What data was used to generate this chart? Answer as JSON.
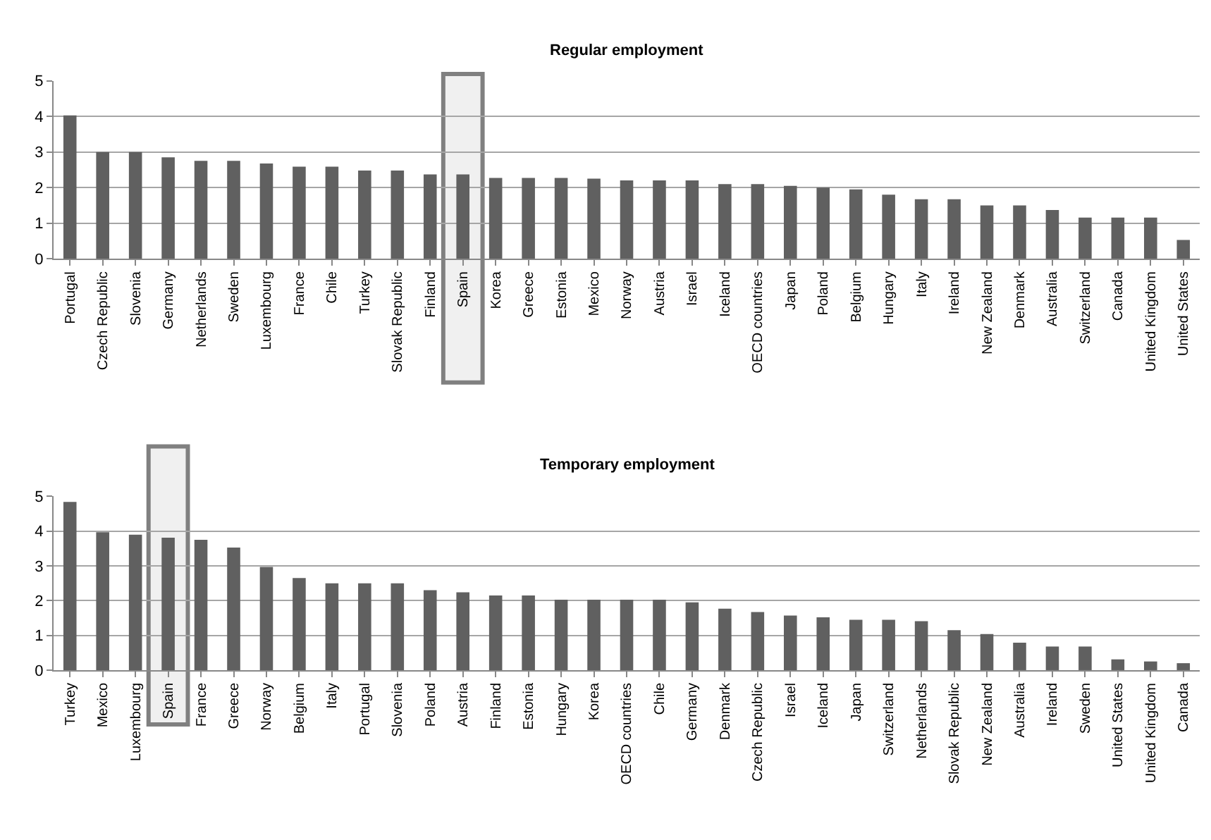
{
  "chart_data": [
    {
      "type": "bar",
      "title": "Regular employment",
      "categories": [
        "Portugal",
        "Czech Republic",
        "Slovenia",
        "Germany",
        "Netherlands",
        "Sweden",
        "Luxembourg",
        "France",
        "Chile",
        "Turkey",
        "Slovak Republic",
        "Finland",
        "Spain",
        "Korea",
        "Greece",
        "Estonia",
        "Mexico",
        "Norway",
        "Austria",
        "Israel",
        "Iceland",
        "OECD countries",
        "Japan",
        "Poland",
        "Belgium",
        "Hungary",
        "Italy",
        "Ireland",
        "New Zealand",
        "Denmark",
        "Australia",
        "Switzerland",
        "Canada",
        "United Kingdom",
        "United States"
      ],
      "values": [
        4.03,
        3.0,
        3.0,
        2.85,
        2.75,
        2.75,
        2.68,
        2.59,
        2.59,
        2.48,
        2.48,
        2.37,
        2.37,
        2.27,
        2.27,
        2.27,
        2.25,
        2.2,
        2.2,
        2.2,
        2.1,
        2.1,
        2.05,
        2.0,
        1.95,
        1.8,
        1.67,
        1.67,
        1.5,
        1.5,
        1.37,
        1.16,
        1.16,
        1.16,
        0.53
      ],
      "color": "#606060",
      "ylim": [
        0,
        5
      ],
      "yticks": [
        0,
        1,
        2,
        3,
        4,
        5
      ],
      "grid": "y",
      "bands": [
        {
          "axis": "x",
          "from": "Spain",
          "to": "Spain",
          "color": "#808080"
        }
      ]
    },
    {
      "type": "bar",
      "title": "Temporary employment",
      "categories": [
        "Turkey",
        "Mexico",
        "Luxembourg",
        "Spain",
        "France",
        "Greece",
        "Norway",
        "Belgium",
        "Italy",
        "Portugal",
        "Slovenia",
        "Poland",
        "Austria",
        "Finland",
        "Estonia",
        "Hungary",
        "Korea",
        "OECD countries",
        "Chile",
        "Germany",
        "Denmark",
        "Czech Republic",
        "Israel",
        "Iceland",
        "Japan",
        "Switzerland",
        "Netherlands",
        "Slovak Republic",
        "New Zealand",
        "Australia",
        "Ireland",
        "Sweden",
        "United States",
        "United Kingdom",
        "Canada"
      ],
      "values": [
        4.84,
        3.97,
        3.9,
        3.81,
        3.75,
        3.53,
        2.97,
        2.65,
        2.5,
        2.5,
        2.5,
        2.3,
        2.24,
        2.15,
        2.15,
        2.03,
        2.03,
        2.03,
        2.03,
        1.95,
        1.77,
        1.67,
        1.57,
        1.52,
        1.45,
        1.45,
        1.41,
        1.15,
        1.04,
        0.79,
        0.68,
        0.68,
        0.31,
        0.25,
        0.2
      ],
      "color": "#606060",
      "ylim": [
        0,
        5
      ],
      "yticks": [
        0,
        1,
        2,
        3,
        4,
        5
      ],
      "grid": "y",
      "bands": [
        {
          "axis": "x",
          "from": "Spain",
          "to": "Spain",
          "color": "#808080"
        }
      ]
    }
  ]
}
